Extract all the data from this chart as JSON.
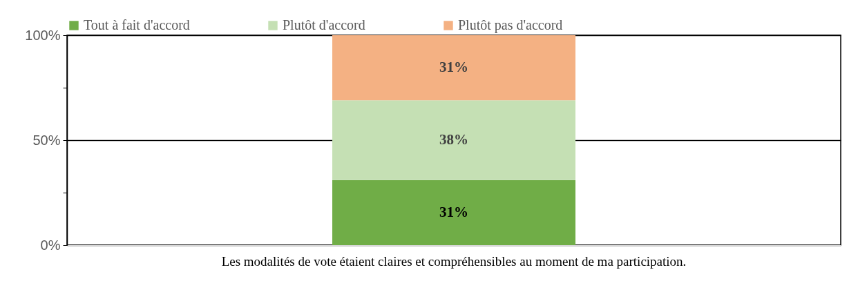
{
  "chart_data": {
    "type": "bar",
    "stacked": true,
    "categories": [
      "Les modalités de vote étaient claires et compréhensibles au moment de ma participation."
    ],
    "series": [
      {
        "name": "Tout à fait d'accord",
        "color": "#70ad47",
        "values": [
          31
        ],
        "value_labels": [
          "31%"
        ]
      },
      {
        "name": "Plutôt d'accord",
        "color": "#c5e0b4",
        "values": [
          38
        ],
        "value_labels": [
          "38%"
        ]
      },
      {
        "name": "Plutôt pas d'accord",
        "color": "#f4b183",
        "values": [
          31
        ],
        "value_labels": [
          "31%"
        ]
      }
    ],
    "ylim": [
      0,
      100
    ],
    "yticks": [
      {
        "value": 0,
        "label": "0%"
      },
      {
        "value": 25,
        "label": null
      },
      {
        "value": 50,
        "label": "50%"
      },
      {
        "value": 75,
        "label": null
      },
      {
        "value": 100,
        "label": "100%"
      }
    ],
    "grid": "y",
    "legend": "top"
  }
}
